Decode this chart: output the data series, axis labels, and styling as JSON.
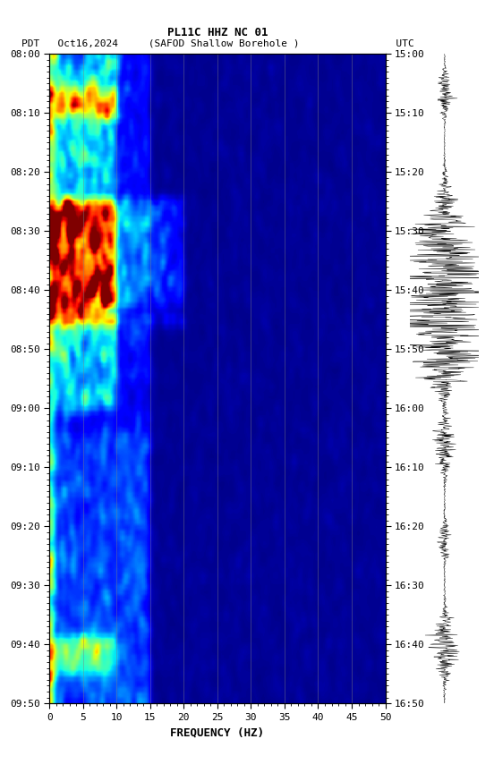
{
  "title_line1": "PL11C HHZ NC 01",
  "title_line2": "PDT   Oct16,2024     (SAFOD Shallow Borehole )                UTC",
  "xlabel": "FREQUENCY (HZ)",
  "ylabel_left": "PDT",
  "ylabel_right": "UTC",
  "freq_min": 0,
  "freq_max": 50,
  "time_start_pdt": "08:00",
  "time_end_pdt": "09:50",
  "time_start_utc": "15:00",
  "time_end_utc": "16:50",
  "freq_ticks": [
    0,
    5,
    10,
    15,
    20,
    25,
    30,
    35,
    40,
    45,
    50
  ],
  "time_ticks_pdt": [
    "08:00",
    "08:10",
    "08:20",
    "08:30",
    "08:40",
    "08:50",
    "09:00",
    "09:10",
    "09:20",
    "09:30",
    "09:40",
    "09:50"
  ],
  "time_ticks_utc": [
    "15:00",
    "15:10",
    "15:20",
    "15:30",
    "15:40",
    "15:50",
    "16:00",
    "16:10",
    "16:20",
    "16:30",
    "16:40",
    "16:50"
  ],
  "bg_color": "#000080",
  "fig_bg": "#ffffff",
  "colormap": "jet",
  "n_time": 120,
  "n_freq": 200,
  "seed": 42
}
